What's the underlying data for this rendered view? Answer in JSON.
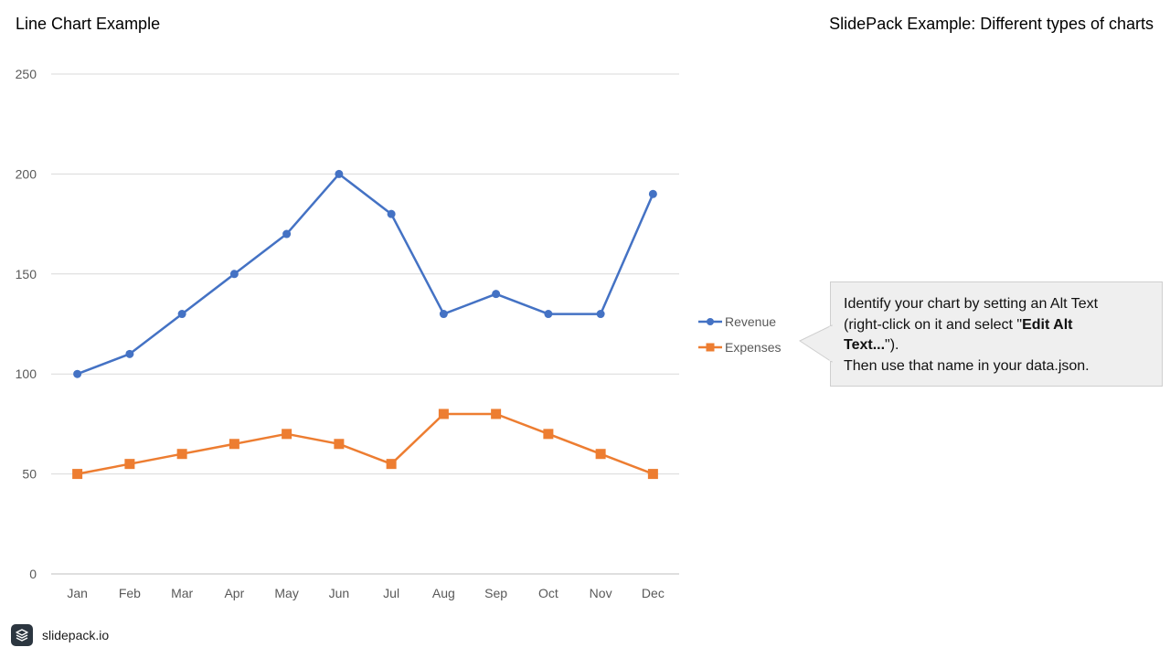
{
  "header": {
    "title": "Line Chart Example",
    "right_title": "SlidePack Example: Different types of charts"
  },
  "callout": {
    "line1": "Identify your chart by setting an Alt Text",
    "line2_pre": "(right-click on it and select \"",
    "line2_bold": "Edit Alt",
    "line3_bold": "Text...",
    "line3_post": "\").",
    "line4": "Then use that name in your data.json."
  },
  "footer": {
    "brand": "slidepack.io",
    "logo_icon": "stack-layers-icon"
  },
  "chart_data": {
    "type": "line",
    "categories": [
      "Jan",
      "Feb",
      "Mar",
      "Apr",
      "May",
      "Jun",
      "Jul",
      "Aug",
      "Sep",
      "Oct",
      "Nov",
      "Dec"
    ],
    "series": [
      {
        "name": "Revenue",
        "values": [
          100,
          110,
          130,
          150,
          170,
          200,
          180,
          130,
          140,
          130,
          130,
          190
        ],
        "color": "#4472c4",
        "marker": "circle"
      },
      {
        "name": "Expenses",
        "values": [
          50,
          55,
          60,
          65,
          70,
          65,
          55,
          80,
          80,
          70,
          60,
          50
        ],
        "color": "#ed7d31",
        "marker": "square"
      }
    ],
    "yticks": [
      0,
      50,
      100,
      150,
      200,
      250
    ],
    "ylim": [
      0,
      250
    ],
    "title": "",
    "xlabel": "",
    "ylabel": "",
    "grid": true,
    "legend_position": "right"
  }
}
